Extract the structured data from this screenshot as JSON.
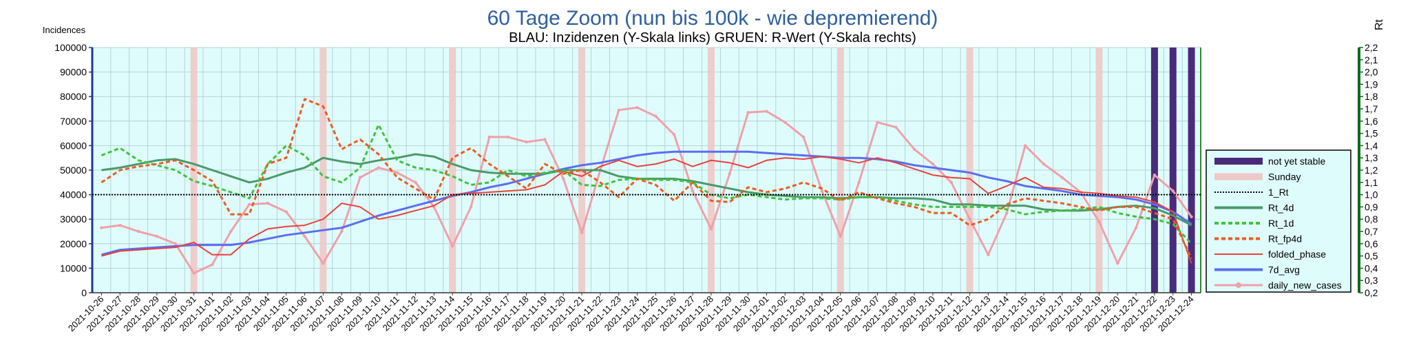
{
  "chart_data": {
    "type": "line",
    "title": "60 Tage Zoom  (nun bis 100k - wie depremierend)",
    "subtitle": "BLAU: Inzidenzen (Y-Skala links)     GRUEN: R-Wert (Y-Skala rechts)",
    "ylabel_left": "Incidences",
    "ylabel_right": "Rt",
    "ylim_left": [
      0,
      100000
    ],
    "ylim_right": [
      0.2,
      2.2
    ],
    "yticks_left": [
      "0",
      "10000",
      "20000",
      "30000",
      "40000",
      "50000",
      "60000",
      "70000",
      "80000",
      "90000",
      "100000"
    ],
    "yticks_right": [
      "0,2",
      "0,3",
      "0,4",
      "0,5",
      "0,6",
      "0,7",
      "0,8",
      "0,9",
      "1,0",
      "1,1",
      "1,2",
      "1,3",
      "1,4",
      "1,5",
      "1,6",
      "1,7",
      "1,8",
      "1,9",
      "2,0",
      "2,1",
      "2,2"
    ],
    "x": [
      "2021-10-26",
      "2021-10-27",
      "2021-10-28",
      "2021-10-29",
      "2021-10-30",
      "2021-10-31",
      "2021-11-01",
      "2021-11-02",
      "2021-11-03",
      "2021-11-04",
      "2021-11-05",
      "2021-11-06",
      "2021-11-07",
      "2021-11-08",
      "2021-11-09",
      "2021-11-10",
      "2021-11-11",
      "2021-11-12",
      "2021-11-13",
      "2021-11-14",
      "2021-11-15",
      "2021-11-16",
      "2021-11-17",
      "2021-11-18",
      "2021-11-19",
      "2021-11-20",
      "2021-11-21",
      "2021-11-22",
      "2021-11-23",
      "2021-11-24",
      "2021-11-25",
      "2021-11-26",
      "2021-11-27",
      "2021-11-28",
      "2021-11-29",
      "2021-11-30",
      "2021-12-01",
      "2021-12-02",
      "2021-12-03",
      "2021-12-04",
      "2021-12-05",
      "2021-12-06",
      "2021-12-07",
      "2021-12-08",
      "2021-12-09",
      "2021-12-10",
      "2021-12-11",
      "2021-12-12",
      "2021-12-13",
      "2021-12-14",
      "2021-12-15",
      "2021-12-16",
      "2021-12-17",
      "2021-12-18",
      "2021-12-19",
      "2021-12-20",
      "2021-12-21",
      "2021-12-22",
      "2021-12-23",
      "2021-12-24"
    ],
    "sunday_dates": [
      "2021-10-31",
      "2021-11-07",
      "2021-11-14",
      "2021-11-21",
      "2021-11-28",
      "2021-12-05",
      "2021-12-12",
      "2021-12-19"
    ],
    "not_yet_stable_dates": [
      "2021-12-22",
      "2021-12-23",
      "2021-12-24"
    ],
    "series": [
      {
        "name": "7d_avg",
        "axis": "left",
        "color": "#5b6ef0",
        "width": 3,
        "dash": "",
        "values": [
          15500,
          17500,
          18000,
          18500,
          19000,
          19500,
          19500,
          19500,
          20500,
          22000,
          23500,
          24500,
          25500,
          26500,
          29000,
          31500,
          33500,
          35500,
          37500,
          39500,
          41000,
          43000,
          44500,
          46500,
          48500,
          50500,
          52000,
          53000,
          54500,
          56000,
          57000,
          57500,
          57500,
          57500,
          57500,
          57500,
          57000,
          56500,
          56000,
          55500,
          55000,
          55000,
          54500,
          53500,
          52000,
          51000,
          50000,
          49000,
          47000,
          45500,
          43500,
          42500,
          41500,
          40000,
          39500,
          39000,
          38000,
          36000,
          33000,
          28000
        ]
      },
      {
        "name": "folded_phase",
        "axis": "left",
        "color": "#e8413c",
        "width": 2,
        "dash": "",
        "values": [
          15000,
          17000,
          17500,
          18000,
          18500,
          20500,
          15500,
          15500,
          22000,
          26000,
          27000,
          27500,
          30000,
          36500,
          35000,
          30000,
          31500,
          33500,
          35500,
          40000,
          40500,
          41000,
          41500,
          42000,
          44000,
          49500,
          47500,
          51500,
          54000,
          51500,
          52500,
          54500,
          51500,
          54000,
          53000,
          51000,
          54000,
          55000,
          54500,
          55500,
          54500,
          53000,
          55000,
          53000,
          50500,
          48000,
          47000,
          46500,
          40500,
          43500,
          47000,
          43000,
          42500,
          41000,
          40500,
          39500,
          39000,
          37000,
          33000,
          12000
        ]
      },
      {
        "name": "daily_new_cases",
        "axis": "left",
        "color": "#f0a0a8",
        "width": 3,
        "dash": "",
        "marker": true,
        "values": [
          26500,
          27500,
          25000,
          23000,
          20000,
          8000,
          11500,
          25000,
          36000,
          36500,
          33000,
          23000,
          12000,
          25000,
          47000,
          51000,
          49000,
          45000,
          35000,
          19000,
          35000,
          63500,
          63500,
          61500,
          62500,
          46500,
          24500,
          50000,
          74500,
          75500,
          72000,
          64500,
          41500,
          26000,
          48500,
          73500,
          74000,
          69500,
          63500,
          41500,
          23000,
          45000,
          69500,
          67500,
          58500,
          52500,
          45000,
          30000,
          15500,
          32500,
          60000,
          52500,
          47000,
          41000,
          29000,
          12000,
          26500,
          48000,
          41500,
          31000
        ]
      },
      {
        "name": "Rt_4d",
        "axis": "right",
        "color": "#4a9a6a",
        "width": 3,
        "dash": "",
        "values": [
          1.2,
          1.22,
          1.25,
          1.28,
          1.29,
          1.25,
          1.2,
          1.15,
          1.1,
          1.13,
          1.18,
          1.22,
          1.3,
          1.27,
          1.25,
          1.28,
          1.3,
          1.33,
          1.31,
          1.25,
          1.2,
          1.18,
          1.17,
          1.17,
          1.17,
          1.2,
          1.2,
          1.2,
          1.15,
          1.13,
          1.13,
          1.13,
          1.11,
          1.08,
          1.05,
          1.02,
          1.0,
          0.99,
          0.98,
          0.98,
          0.97,
          0.98,
          0.98,
          0.97,
          0.97,
          0.96,
          0.92,
          0.92,
          0.91,
          0.91,
          0.91,
          0.88,
          0.87,
          0.87,
          0.88,
          0.9,
          0.91,
          0.89,
          0.83,
          0.75
        ]
      },
      {
        "name": "Rt_1d",
        "axis": "right",
        "color": "#3dc43d",
        "width": 3,
        "dash": "6,4",
        "values": [
          1.32,
          1.38,
          1.28,
          1.24,
          1.2,
          1.11,
          1.07,
          1.02,
          0.97,
          1.25,
          1.4,
          1.32,
          1.15,
          1.1,
          1.22,
          1.57,
          1.28,
          1.22,
          1.2,
          1.15,
          1.08,
          1.1,
          1.2,
          1.15,
          1.18,
          1.2,
          1.08,
          1.07,
          1.12,
          1.13,
          1.12,
          1.12,
          1.1,
          1.0,
          0.97,
          1.0,
          0.98,
          0.96,
          0.97,
          0.97,
          0.96,
          0.98,
          0.98,
          0.95,
          0.92,
          0.9,
          0.9,
          0.9,
          0.9,
          0.88,
          0.84,
          0.86,
          0.87,
          0.88,
          0.9,
          0.85,
          0.82,
          0.8,
          0.76,
          0.6
        ]
      },
      {
        "name": "Rt_fp4d",
        "axis": "right",
        "color": "#f05a1e",
        "width": 3,
        "dash": "6,4",
        "values": [
          1.1,
          1.2,
          1.23,
          1.25,
          1.28,
          1.2,
          1.11,
          0.84,
          0.84,
          1.25,
          1.3,
          1.78,
          1.72,
          1.37,
          1.45,
          1.33,
          1.14,
          1.05,
          0.96,
          1.3,
          1.38,
          1.25,
          1.15,
          1.05,
          1.25,
          1.17,
          1.2,
          1.1,
          0.98,
          1.13,
          1.08,
          0.95,
          1.1,
          0.95,
          0.94,
          1.06,
          1.02,
          1.05,
          1.1,
          1.05,
          0.95,
          1.02,
          0.97,
          0.93,
          0.9,
          0.85,
          0.85,
          0.75,
          0.8,
          0.92,
          0.97,
          0.95,
          0.93,
          0.9,
          0.87,
          0.9,
          0.9,
          0.85,
          0.8,
          0.48
        ]
      },
      {
        "name": "1_Rt",
        "axis": "right",
        "color": "#000000",
        "width": 2,
        "dash": "2,2",
        "values": "const_1"
      }
    ],
    "legend": [
      "not yet stable",
      "Sunday",
      "1_Rt",
      "Rt_4d",
      "Rt_1d",
      "Rt_fp4d",
      "folded_phase",
      "7d_avg",
      "daily_new_cases"
    ],
    "legend_position": "right",
    "grid": true,
    "plot_background": "#dffcfc"
  }
}
